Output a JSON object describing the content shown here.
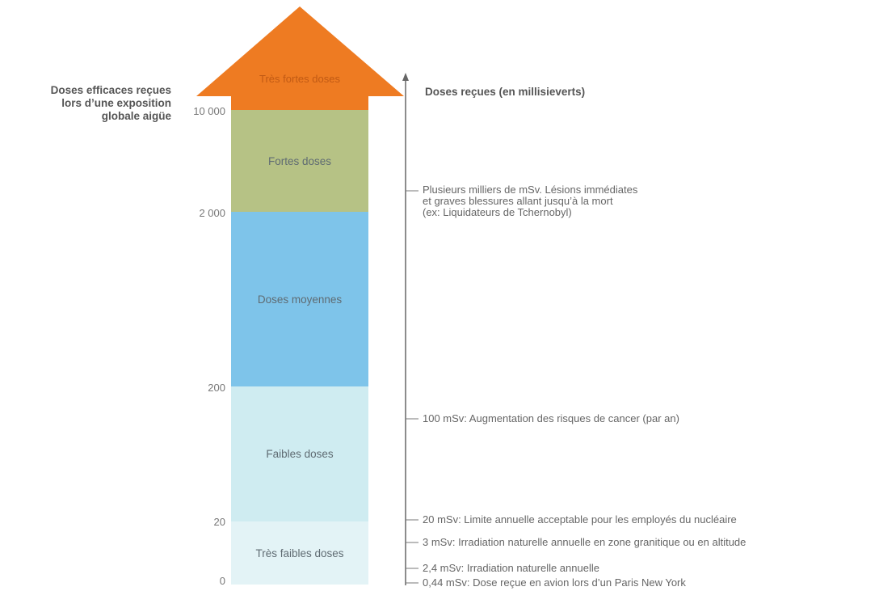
{
  "left_axis_title": [
    "Doses efficaces reçues",
    "lors d’une exposition",
    "globale aigüe"
  ],
  "right_axis_title": "Doses reçues (en millisieverts)",
  "scale_ticks": [
    "10 000",
    "2 000",
    "200",
    "20",
    "0"
  ],
  "bands": [
    {
      "label": "Très fortes doses",
      "color": "#ee7b22"
    },
    {
      "label": "Fortes doses",
      "color": "#b6c285"
    },
    {
      "label": "Doses moyennes",
      "color": "#7ec4ea"
    },
    {
      "label": "Faibles doses",
      "color": "#cfecf1"
    },
    {
      "label": "Très faibles doses",
      "color": "#e3f3f6"
    }
  ],
  "annotations": [
    {
      "lines": [
        "Plusieurs milliers de mSv. Lésions immédiates",
        "et graves blessures allant jusqu’à la mort",
        "(ex: Liquidateurs de Tchernobyl)"
      ]
    },
    {
      "lines": [
        "100 mSv: Augmentation des risques de cancer (par an)"
      ]
    },
    {
      "lines": [
        "20 mSv: Limite annuelle acceptable pour les employés du nucléaire"
      ]
    },
    {
      "lines": [
        "3 mSv: Irradiation naturelle annuelle en zone granitique ou en altitude"
      ]
    },
    {
      "lines": [
        "2,4 mSv: Irradiation naturelle annuelle"
      ]
    },
    {
      "lines": [
        "0,44 mSv: Dose reçue en avion lors d’un Paris New York"
      ]
    }
  ]
}
